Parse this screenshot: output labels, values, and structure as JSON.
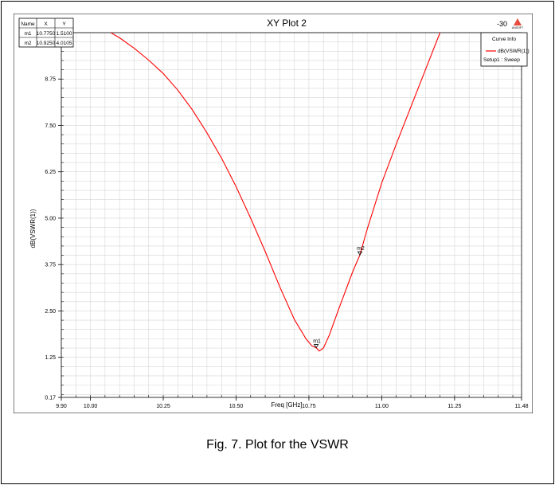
{
  "chart_data": {
    "type": "line",
    "title": "XY Plot 2",
    "xlabel": "Freq [GHz]",
    "ylabel": "dB(VSWR(1))",
    "xlim": [
      9.9,
      11.48
    ],
    "ylim": [
      0.17,
      10.0
    ],
    "x_ticks": [
      "9.90",
      "10.00",
      "10.25",
      "10.50",
      "10.75",
      "11.00",
      "11.25",
      "11.48"
    ],
    "y_ticks": [
      "0.17",
      "1.25",
      "2.50",
      "3.75",
      "5.00",
      "6.25",
      "7.50",
      "8.75"
    ],
    "grid": true,
    "header_right": "-30",
    "logo_text": "ANSOFT",
    "legend": {
      "placement": "top-right",
      "title": "Curve Info",
      "series_label": "dB(VSWR(1))",
      "setup_label": "Setup1 : Sweep"
    },
    "marker_table": {
      "headers": [
        "Name",
        "X",
        "Y"
      ],
      "rows": [
        [
          "m1",
          "10.7750",
          "1.5100"
        ],
        [
          "m2",
          "10.9250",
          "4.0105"
        ]
      ]
    },
    "markers": [
      {
        "name": "m1",
        "x": 10.775,
        "y": 1.51
      },
      {
        "name": "m2",
        "x": 10.925,
        "y": 4.0105
      }
    ],
    "series": [
      {
        "name": "dB(VSWR(1))",
        "color": "#ff0000",
        "x": [
          10.07,
          10.1,
          10.15,
          10.2,
          10.25,
          10.3,
          10.35,
          10.4,
          10.45,
          10.5,
          10.55,
          10.6,
          10.65,
          10.7,
          10.74,
          10.76,
          10.775,
          10.785,
          10.8,
          10.82,
          10.85,
          10.9,
          10.925,
          10.95,
          11.0,
          11.05,
          11.1,
          11.15,
          11.2
        ],
        "y": [
          10.0,
          9.86,
          9.58,
          9.26,
          8.9,
          8.45,
          7.92,
          7.3,
          6.62,
          5.85,
          5.0,
          4.1,
          3.15,
          2.27,
          1.75,
          1.56,
          1.51,
          1.42,
          1.5,
          1.85,
          2.5,
          3.55,
          4.0105,
          4.7,
          5.95,
          7.0,
          8.0,
          9.0,
          10.0
        ]
      }
    ]
  },
  "caption": "Fig. 7. Plot for the VSWR"
}
